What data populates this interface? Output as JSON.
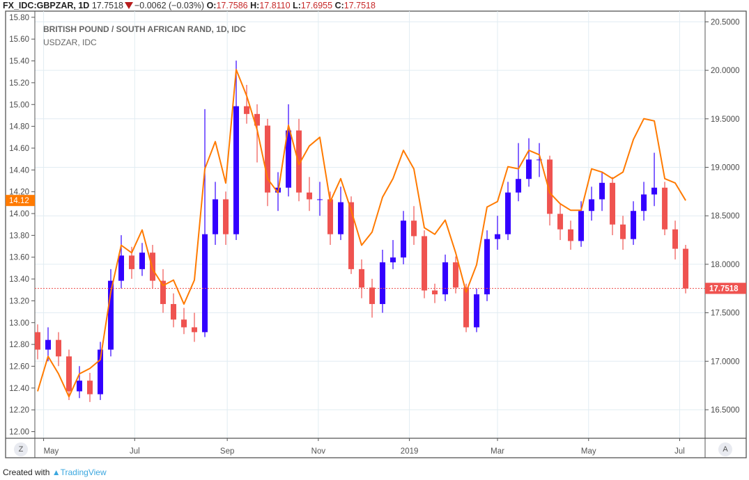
{
  "header": {
    "symbol": "FX_IDC:GBPZAR, 1D",
    "last": "17.7518",
    "change": "−0.0062 (−0.03%)",
    "o_label": "O:",
    "o": "17.7586",
    "h_label": "H:",
    "h": "17.8110",
    "l_label": "L:",
    "l": "17.6955",
    "c_label": "C:",
    "c": "17.7518",
    "direction_icon": "triangle-down-icon"
  },
  "legend": {
    "main_series": "BRITISH POUND / SOUTH AFRICAN RAND, 1D, IDC",
    "compare_series": "USDZAR, IDC"
  },
  "buttons": {
    "left": "Z",
    "right": "A"
  },
  "footer": {
    "prefix": "Created with",
    "brand": "TradingView"
  },
  "colors": {
    "up": "#3300ff",
    "down": "#ef5350",
    "compare": "#ff7a00",
    "grid": "#e1ecf2",
    "last_price": "#ef5350"
  },
  "chart_data": {
    "type": "candlestick+line",
    "left_axis": {
      "series": "USDZAR",
      "ylim": [
        12.0,
        15.8
      ],
      "ticks": [
        "12.00",
        "12.20",
        "12.40",
        "12.60",
        "12.80",
        "13.00",
        "13.20",
        "13.40",
        "13.60",
        "13.80",
        "14.00",
        "14.20",
        "14.40",
        "14.60",
        "14.80",
        "15.00",
        "15.20",
        "15.40",
        "15.60",
        "15.80"
      ],
      "last_label": "14.12"
    },
    "right_axis": {
      "series": "GBPZAR",
      "ylim": [
        16.3,
        20.6
      ],
      "ticks": [
        "16.5000",
        "17.0000",
        "17.5000",
        "18.0000",
        "18.5000",
        "19.0000",
        "19.5000",
        "20.0000",
        "20.5000"
      ],
      "last_label": "17.7518"
    },
    "x_ticks": [
      {
        "date": "2018-05-01",
        "label": "May"
      },
      {
        "date": "2018-07-01",
        "label": "Jul"
      },
      {
        "date": "2018-09-01",
        "label": "Sep"
      },
      {
        "date": "2018-11-01",
        "label": "Nov"
      },
      {
        "date": "2019-01-01",
        "label": "2019"
      },
      {
        "date": "2019-03-01",
        "label": "Mar"
      },
      {
        "date": "2019-05-01",
        "label": "May"
      },
      {
        "date": "2019-07-01",
        "label": "Jul"
      }
    ],
    "grid": true,
    "candles_ohlc": [
      [
        "2018-04-27",
        17.3,
        17.38,
        17.02,
        17.12
      ],
      [
        "2018-05-04",
        17.12,
        17.35,
        17.0,
        17.22
      ],
      [
        "2018-05-11",
        17.22,
        17.3,
        16.95,
        17.05
      ],
      [
        "2018-05-18",
        17.05,
        17.12,
        16.6,
        16.69
      ],
      [
        "2018-05-25",
        16.69,
        16.95,
        16.62,
        16.8
      ],
      [
        "2018-06-01",
        16.8,
        16.88,
        16.58,
        16.66
      ],
      [
        "2018-06-08",
        16.66,
        17.2,
        16.6,
        17.12
      ],
      [
        "2018-06-15",
        17.12,
        17.95,
        17.05,
        17.83
      ],
      [
        "2018-06-22",
        17.83,
        18.3,
        17.75,
        18.09
      ],
      [
        "2018-06-29",
        18.09,
        18.18,
        17.85,
        17.95
      ],
      [
        "2018-07-06",
        17.95,
        18.22,
        17.88,
        18.12
      ],
      [
        "2018-07-13",
        18.12,
        18.2,
        17.75,
        17.83
      ],
      [
        "2018-07-20",
        17.83,
        17.95,
        17.5,
        17.59
      ],
      [
        "2018-07-27",
        17.59,
        17.7,
        17.35,
        17.43
      ],
      [
        "2018-08-03",
        17.43,
        17.55,
        17.28,
        17.35
      ],
      [
        "2018-08-10",
        17.35,
        17.5,
        17.2,
        17.3
      ],
      [
        "2018-08-17",
        17.3,
        19.6,
        17.25,
        18.31
      ],
      [
        "2018-08-24",
        18.31,
        18.85,
        18.2,
        18.67
      ],
      [
        "2018-08-31",
        18.67,
        18.75,
        18.2,
        18.31
      ],
      [
        "2018-09-07",
        18.31,
        20.1,
        18.25,
        19.63
      ],
      [
        "2018-09-14",
        19.63,
        19.85,
        19.45,
        19.55
      ],
      [
        "2018-09-21",
        19.55,
        19.65,
        19.05,
        19.43
      ],
      [
        "2018-09-28",
        19.43,
        19.5,
        18.6,
        18.74
      ],
      [
        "2018-10-05",
        18.74,
        18.95,
        18.55,
        18.79
      ],
      [
        "2018-10-12",
        18.79,
        19.65,
        18.7,
        19.38
      ],
      [
        "2018-10-19",
        19.38,
        19.5,
        18.65,
        18.74
      ],
      [
        "2018-10-26",
        18.74,
        18.9,
        18.55,
        18.67
      ],
      [
        "2018-11-02",
        18.67,
        18.85,
        18.5,
        18.67
      ],
      [
        "2018-11-09",
        18.67,
        18.75,
        18.2,
        18.31
      ],
      [
        "2018-11-16",
        18.31,
        18.8,
        18.25,
        18.64
      ],
      [
        "2018-11-23",
        18.64,
        18.7,
        17.9,
        17.95
      ],
      [
        "2018-11-30",
        17.95,
        18.05,
        17.65,
        17.76
      ],
      [
        "2018-12-07",
        17.76,
        17.85,
        17.45,
        17.59
      ],
      [
        "2018-12-14",
        17.59,
        18.15,
        17.5,
        18.02
      ],
      [
        "2018-12-21",
        18.02,
        18.25,
        17.95,
        18.07
      ],
      [
        "2018-12-28",
        18.07,
        18.55,
        18.0,
        18.45
      ],
      [
        "2019-01-04",
        18.45,
        18.6,
        18.2,
        18.29
      ],
      [
        "2019-01-11",
        18.29,
        18.35,
        17.65,
        17.73
      ],
      [
        "2019-01-18",
        17.73,
        17.8,
        17.6,
        17.69
      ],
      [
        "2019-01-25",
        17.69,
        18.1,
        17.62,
        18.02
      ],
      [
        "2019-02-01",
        18.02,
        18.08,
        17.7,
        17.76
      ],
      [
        "2019-02-08",
        17.76,
        17.8,
        17.3,
        17.35
      ],
      [
        "2019-02-15",
        17.35,
        17.75,
        17.3,
        17.69
      ],
      [
        "2019-02-22",
        17.69,
        18.35,
        17.62,
        18.26
      ],
      [
        "2019-03-01",
        18.26,
        18.5,
        18.15,
        18.31
      ],
      [
        "2019-03-08",
        18.31,
        18.85,
        18.25,
        18.74
      ],
      [
        "2019-03-15",
        18.74,
        19.25,
        18.65,
        18.88
      ],
      [
        "2019-03-22",
        18.88,
        19.3,
        18.8,
        19.08
      ],
      [
        "2019-03-29",
        19.08,
        19.25,
        18.9,
        19.08
      ],
      [
        "2019-04-05",
        19.08,
        19.12,
        18.4,
        18.52
      ],
      [
        "2019-04-12",
        18.52,
        18.62,
        18.25,
        18.36
      ],
      [
        "2019-04-19",
        18.36,
        18.45,
        18.15,
        18.24
      ],
      [
        "2019-04-26",
        18.24,
        18.65,
        18.18,
        18.55
      ],
      [
        "2019-05-03",
        18.55,
        18.8,
        18.45,
        18.67
      ],
      [
        "2019-05-10",
        18.67,
        18.95,
        18.55,
        18.84
      ],
      [
        "2019-05-17",
        18.84,
        18.9,
        18.3,
        18.41
      ],
      [
        "2019-05-24",
        18.41,
        18.5,
        18.15,
        18.26
      ],
      [
        "2019-05-31",
        18.26,
        18.65,
        18.2,
        18.55
      ],
      [
        "2019-06-07",
        18.55,
        18.85,
        18.45,
        18.72
      ],
      [
        "2019-06-14",
        18.72,
        19.15,
        18.6,
        18.79
      ],
      [
        "2019-06-21",
        18.79,
        18.85,
        18.3,
        18.36
      ],
      [
        "2019-06-28",
        18.36,
        18.45,
        18.05,
        18.16
      ],
      [
        "2019-07-05",
        18.16,
        18.2,
        17.7,
        17.75
      ]
    ],
    "compare_line": [
      12.37,
      12.69,
      12.53,
      12.32,
      12.53,
      12.58,
      12.66,
      13.28,
      13.71,
      13.64,
      13.85,
      13.49,
      13.34,
      13.39,
      13.17,
      13.39,
      14.41,
      14.66,
      14.28,
      15.32,
      15.08,
      14.77,
      14.32,
      14.19,
      14.81,
      14.45,
      14.62,
      14.7,
      14.11,
      14.32,
      14.03,
      13.71,
      13.83,
      14.15,
      14.32,
      14.58,
      14.41,
      13.87,
      13.81,
      13.94,
      13.64,
      13.28,
      13.53,
      14.06,
      14.11,
      14.43,
      14.41,
      14.58,
      14.54,
      14.19,
      14.09,
      14.03,
      14.03,
      14.41,
      14.38,
      14.32,
      14.38,
      14.68,
      14.87,
      14.85,
      14.32,
      14.28,
      14.12
    ]
  }
}
